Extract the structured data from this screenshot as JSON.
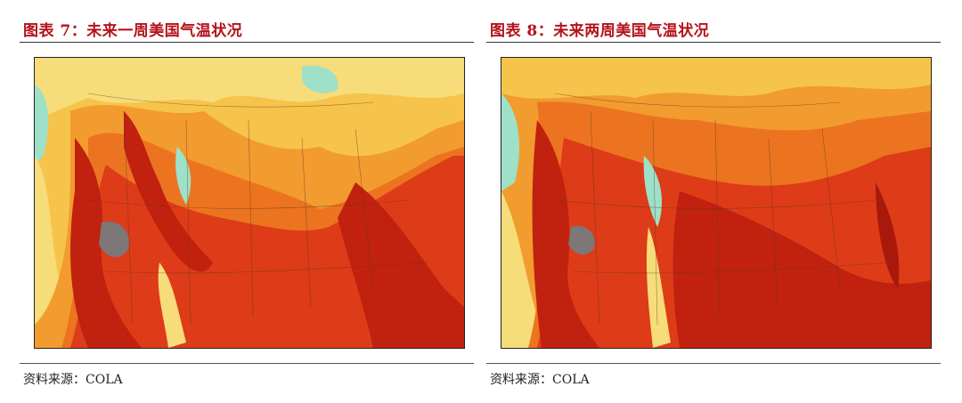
{
  "figures": [
    {
      "title": "图表 7：未来一周美国气温状况",
      "source": "资料来源：COLA"
    },
    {
      "title": "图表 8：未来两周美国气温状况",
      "source": "资料来源：COLA"
    }
  ],
  "colors": {
    "title": "#b5121b",
    "pale_yellow": "#f7dc7a",
    "yellow": "#f6c44a",
    "orange": "#f29b2e",
    "dark_orange": "#ec7420",
    "red": "#de3b18",
    "dark_red": "#c1210f",
    "gray": "#7d7777",
    "cyan": "#9fe0c8"
  }
}
